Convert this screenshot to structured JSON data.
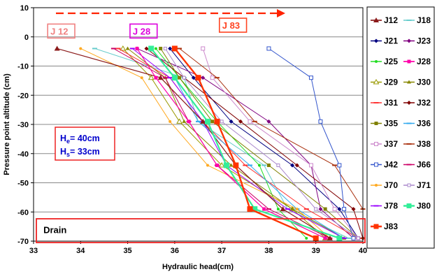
{
  "chart_data": {
    "type": "line",
    "title": "",
    "xlabel": "Hydraulic head(cm)",
    "ylabel": "Pressure point altitude (cm)",
    "xlim": [
      33,
      40
    ],
    "ylim": [
      -70,
      10
    ],
    "xticks": [
      33,
      34,
      35,
      36,
      37,
      38,
      39,
      40
    ],
    "yticks": [
      10,
      0,
      -10,
      -20,
      -30,
      -40,
      -50,
      -60,
      -70
    ],
    "grid": "horizontal",
    "legend_position": "right",
    "annotations": [
      {
        "text": "J 12",
        "x": 33.3,
        "y": 2,
        "color": "#f08080"
      },
      {
        "text": "J 28",
        "x": 35.05,
        "y": 2,
        "color": "#dd00dd"
      },
      {
        "text": "J 83",
        "x": 36.95,
        "y": 4,
        "color": "#ff4422"
      },
      {
        "text": "Drain",
        "x": 33.15,
        "y": -66,
        "color": "#000000"
      }
    ],
    "head_box": {
      "he_label": "H",
      "he_sub": "e",
      "he_value": "= 40cm",
      "hs_label": "H",
      "hs_sub": "s",
      "hs_value": "= 33cm"
    },
    "series": [
      {
        "name": "J12",
        "color": "#8b1a1a",
        "marker": "triangle",
        "size": 6,
        "width": 1.2,
        "values": [
          [
            33.5,
            -4
          ],
          [
            35.7,
            -14
          ],
          [
            36.6,
            -29
          ],
          [
            37.3,
            -44
          ],
          [
            38.3,
            -59
          ],
          [
            39.3,
            -69
          ]
        ]
      },
      {
        "name": "J18",
        "color": "#66cccc",
        "marker": "dash",
        "size": 5,
        "width": 1,
        "values": [
          [
            34.3,
            -4
          ],
          [
            36.2,
            -14
          ],
          [
            36.5,
            -29
          ],
          [
            37.9,
            -44
          ],
          [
            38.4,
            -59
          ],
          [
            39.7,
            -69
          ]
        ]
      },
      {
        "name": "J21",
        "color": "#000080",
        "marker": "diamond",
        "size": 4,
        "width": 1,
        "values": [
          [
            35.9,
            -4
          ],
          [
            36.4,
            -14
          ],
          [
            37.2,
            -29
          ],
          [
            38.5,
            -44
          ],
          [
            39.5,
            -59
          ],
          [
            39.9,
            -69
          ]
        ]
      },
      {
        "name": "J23",
        "color": "#800080",
        "marker": "diamond",
        "size": 4,
        "width": 1,
        "values": [
          [
            35.2,
            -4
          ],
          [
            36.6,
            -14
          ],
          [
            38.0,
            -29
          ],
          [
            38.9,
            -44
          ],
          [
            39.1,
            -59
          ],
          [
            39.8,
            -69
          ]
        ]
      },
      {
        "name": "J25",
        "color": "#22dd22",
        "marker": "circle",
        "size": 4,
        "width": 1,
        "values": [
          [
            35.6,
            -4
          ],
          [
            36.1,
            -14
          ],
          [
            36.9,
            -29
          ],
          [
            37.8,
            -44
          ],
          [
            38.2,
            -59
          ],
          [
            38.8,
            -69
          ]
        ]
      },
      {
        "name": "J28",
        "color": "#ff00aa",
        "marker": "square",
        "size": 5,
        "width": 1.2,
        "values": [
          [
            35.2,
            -4
          ],
          [
            35.6,
            -14
          ],
          [
            36.3,
            -29
          ],
          [
            36.9,
            -44
          ],
          [
            37.9,
            -59
          ],
          [
            39.2,
            -69
          ]
        ]
      },
      {
        "name": "J29",
        "color": "#999900",
        "marker": "triangle-open",
        "size": 5,
        "width": 1,
        "values": [
          [
            34.9,
            -4
          ],
          [
            35.5,
            -14
          ],
          [
            36.1,
            -29
          ],
          [
            37.0,
            -44
          ],
          [
            38.5,
            -59
          ],
          [
            39.2,
            -69
          ]
        ]
      },
      {
        "name": "J30",
        "color": "#888800",
        "marker": "triangle",
        "size": 4,
        "width": 1,
        "values": [
          [
            35.0,
            -4
          ],
          [
            35.8,
            -14
          ],
          [
            36.2,
            -29
          ],
          [
            37.2,
            -44
          ],
          [
            38.5,
            -59
          ],
          [
            39.6,
            -69
          ]
        ]
      },
      {
        "name": "J31",
        "color": "#ff3333",
        "marker": "dash",
        "size": 5,
        "width": 1,
        "values": [
          [
            34.8,
            -4
          ],
          [
            35.9,
            -14
          ],
          [
            36.6,
            -29
          ],
          [
            37.5,
            -44
          ],
          [
            38.8,
            -59
          ],
          [
            39.9,
            -69
          ]
        ]
      },
      {
        "name": "J32",
        "color": "#800000",
        "marker": "diamond",
        "size": 4,
        "width": 1,
        "values": [
          [
            35.4,
            -4
          ],
          [
            36.2,
            -14
          ],
          [
            37.4,
            -29
          ],
          [
            38.6,
            -44
          ],
          [
            39.8,
            -59
          ],
          [
            40.0,
            -69
          ]
        ]
      },
      {
        "name": "J35",
        "color": "#808000",
        "marker": "square",
        "size": 5,
        "width": 1,
        "values": [
          [
            35.7,
            -4
          ],
          [
            36.1,
            -14
          ],
          [
            36.8,
            -29
          ],
          [
            38.0,
            -44
          ],
          [
            39.2,
            -59
          ],
          [
            39.9,
            -69
          ]
        ]
      },
      {
        "name": "J36",
        "color": "#33aaee",
        "marker": "dash",
        "size": 5,
        "width": 1,
        "values": [
          [
            35.5,
            -4
          ],
          [
            36.0,
            -14
          ],
          [
            36.5,
            -29
          ],
          [
            37.6,
            -44
          ],
          [
            38.6,
            -59
          ],
          [
            39.6,
            -69
          ]
        ]
      },
      {
        "name": "J37",
        "color": "#cc88cc",
        "marker": "square-open",
        "size": 5,
        "width": 1,
        "values": [
          [
            36.6,
            -4
          ],
          [
            36.8,
            -14
          ],
          [
            37.6,
            -29
          ],
          [
            38.9,
            -44
          ],
          [
            39.4,
            -59
          ],
          [
            39.9,
            -69
          ]
        ]
      },
      {
        "name": "J38",
        "color": "#aa3311",
        "marker": "dash",
        "size": 5,
        "width": 1,
        "values": [
          [
            36.1,
            -4
          ],
          [
            36.9,
            -14
          ],
          [
            37.7,
            -29
          ],
          [
            39.4,
            -44
          ],
          [
            40.0,
            -59
          ],
          [
            40.0,
            -69
          ]
        ]
      },
      {
        "name": "J42",
        "color": "#3355cc",
        "marker": "square-open",
        "size": 5,
        "width": 1,
        "values": [
          [
            38.0,
            -4
          ],
          [
            38.9,
            -14
          ],
          [
            39.1,
            -29
          ],
          [
            39.5,
            -44
          ],
          [
            39.6,
            -59
          ],
          [
            39.8,
            -69
          ]
        ]
      },
      {
        "name": "J66",
        "color": "#cc0066",
        "marker": "dash",
        "size": 5,
        "width": 1,
        "values": [
          [
            34.7,
            -4
          ],
          [
            35.8,
            -14
          ],
          [
            36.3,
            -29
          ],
          [
            36.9,
            -44
          ],
          [
            38.0,
            -59
          ],
          [
            39.3,
            -69
          ]
        ]
      },
      {
        "name": "J70",
        "color": "#ffaa22",
        "marker": "circle",
        "size": 4,
        "width": 1,
        "values": [
          [
            34.0,
            -4
          ],
          [
            35.3,
            -14
          ],
          [
            35.9,
            -29
          ],
          [
            36.7,
            -44
          ],
          [
            38.6,
            -59
          ],
          [
            39.3,
            -69
          ]
        ]
      },
      {
        "name": "J71",
        "color": "#aa88cc",
        "marker": "square-open",
        "size": 4,
        "width": 1,
        "values": [
          [
            35.8,
            -4
          ],
          [
            36.2,
            -14
          ],
          [
            37.0,
            -29
          ],
          [
            38.2,
            -44
          ],
          [
            39.0,
            -59
          ],
          [
            39.9,
            -69
          ]
        ]
      },
      {
        "name": "J78",
        "color": "#9900ff",
        "marker": "dash",
        "size": 5,
        "width": 1,
        "values": [
          [
            35.1,
            -4
          ],
          [
            35.9,
            -14
          ],
          [
            36.6,
            -29
          ],
          [
            37.1,
            -44
          ],
          [
            38.4,
            -59
          ],
          [
            39.6,
            -69
          ]
        ]
      },
      {
        "name": "J80",
        "color": "#33ee99",
        "marker": "square",
        "size": 8,
        "width": 2.2,
        "values": [
          [
            35.5,
            -4
          ],
          [
            36.0,
            -14
          ],
          [
            36.7,
            -29
          ],
          [
            37.1,
            -44
          ],
          [
            37.7,
            -59
          ],
          [
            39.5,
            -69
          ]
        ]
      },
      {
        "name": "J83",
        "color": "#ff3300",
        "marker": "square",
        "size": 8,
        "width": 2.4,
        "values": [
          [
            36.0,
            -4
          ],
          [
            36.5,
            -14
          ],
          [
            36.9,
            -29
          ],
          [
            37.3,
            -44
          ],
          [
            37.6,
            -59
          ],
          [
            39.0,
            -69
          ]
        ]
      }
    ]
  }
}
